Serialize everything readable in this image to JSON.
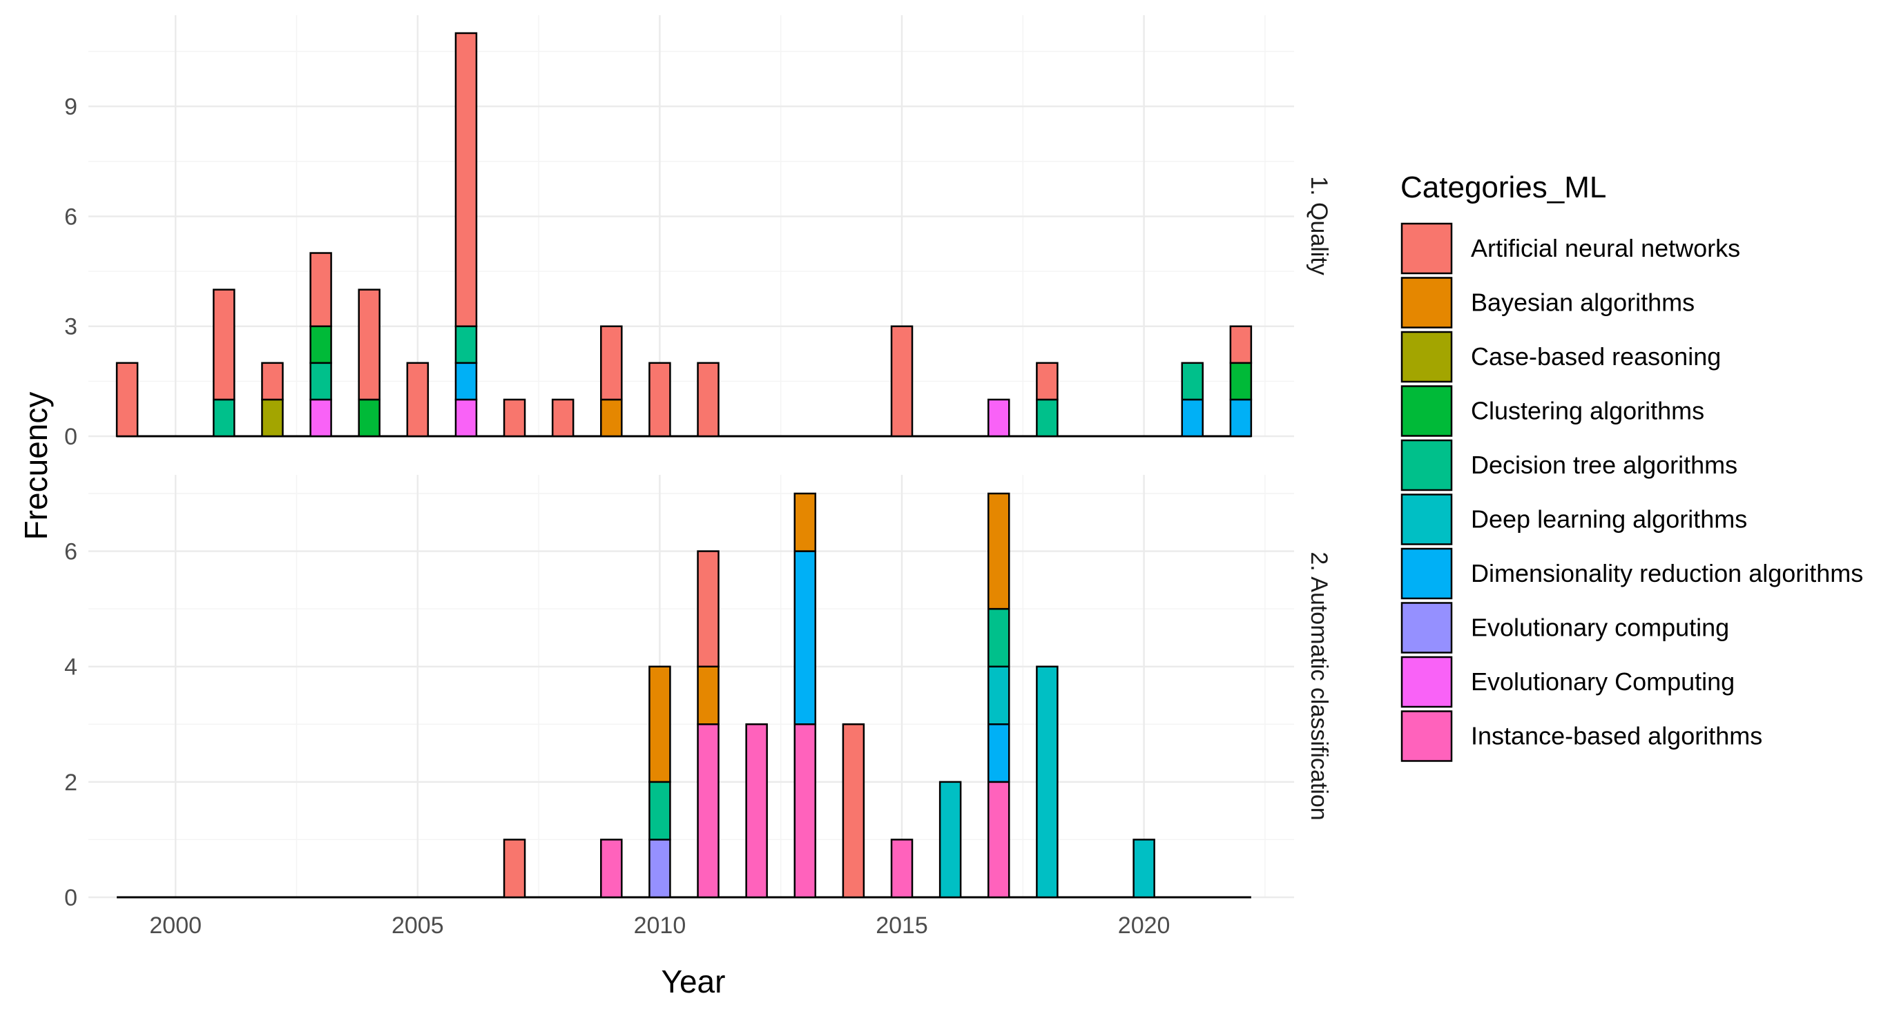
{
  "chart_data": {
    "type": "bar",
    "stacked": true,
    "xlabel": "Year",
    "ylabel": "Frecuency",
    "legend_title": "Categories_ML",
    "legend_position": "right",
    "x_ticks": [
      2000,
      2005,
      2010,
      2015,
      2020
    ],
    "categories": [
      {
        "name": "Artificial neural networks",
        "color": "#F8766D"
      },
      {
        "name": "Bayesian algorithms",
        "color": "#E58700"
      },
      {
        "name": "Case-based reasoning",
        "color": "#A3A500"
      },
      {
        "name": "Clustering algorithms",
        "color": "#00BA38"
      },
      {
        "name": "Decision tree algorithms",
        "color": "#00C08B"
      },
      {
        "name": "Deep learning algorithms",
        "color": "#00BFC4"
      },
      {
        "name": "Dimensionality reduction algorithms",
        "color": "#00B0F6"
      },
      {
        "name": "Evolutionary computing",
        "color": "#9590FF"
      },
      {
        "name": "Evolutionary Computing",
        "color": "#F962F7"
      },
      {
        "name": "Instance-based algorithms",
        "color": "#FF62BC"
      }
    ],
    "panels": [
      {
        "strip": "1. Quality",
        "ylim": [
          0,
          11
        ],
        "y_ticks": [
          0,
          3,
          6,
          9
        ],
        "bars": [
          {
            "year": 1999,
            "segments": [
              {
                "category": "Artificial neural networks",
                "value": 2
              }
            ]
          },
          {
            "year": 2001,
            "segments": [
              {
                "category": "Decision tree algorithms",
                "value": 1
              },
              {
                "category": "Artificial neural networks",
                "value": 3
              }
            ]
          },
          {
            "year": 2002,
            "segments": [
              {
                "category": "Case-based reasoning",
                "value": 1
              },
              {
                "category": "Artificial neural networks",
                "value": 1
              }
            ]
          },
          {
            "year": 2003,
            "segments": [
              {
                "category": "Evolutionary Computing",
                "value": 1
              },
              {
                "category": "Decision tree algorithms",
                "value": 1
              },
              {
                "category": "Clustering algorithms",
                "value": 1
              },
              {
                "category": "Artificial neural networks",
                "value": 2
              }
            ]
          },
          {
            "year": 2004,
            "segments": [
              {
                "category": "Clustering algorithms",
                "value": 1
              },
              {
                "category": "Artificial neural networks",
                "value": 3
              }
            ]
          },
          {
            "year": 2005,
            "segments": [
              {
                "category": "Artificial neural networks",
                "value": 2
              }
            ]
          },
          {
            "year": 2006,
            "segments": [
              {
                "category": "Evolutionary Computing",
                "value": 1
              },
              {
                "category": "Dimensionality reduction algorithms",
                "value": 1
              },
              {
                "category": "Decision tree algorithms",
                "value": 1
              },
              {
                "category": "Artificial neural networks",
                "value": 8
              }
            ]
          },
          {
            "year": 2007,
            "segments": [
              {
                "category": "Artificial neural networks",
                "value": 1
              }
            ]
          },
          {
            "year": 2008,
            "segments": [
              {
                "category": "Artificial neural networks",
                "value": 1
              }
            ]
          },
          {
            "year": 2009,
            "segments": [
              {
                "category": "Bayesian algorithms",
                "value": 1
              },
              {
                "category": "Artificial neural networks",
                "value": 2
              }
            ]
          },
          {
            "year": 2010,
            "segments": [
              {
                "category": "Artificial neural networks",
                "value": 2
              }
            ]
          },
          {
            "year": 2011,
            "segments": [
              {
                "category": "Artificial neural networks",
                "value": 2
              }
            ]
          },
          {
            "year": 2015,
            "segments": [
              {
                "category": "Artificial neural networks",
                "value": 3
              }
            ]
          },
          {
            "year": 2017,
            "segments": [
              {
                "category": "Evolutionary Computing",
                "value": 1
              }
            ]
          },
          {
            "year": 2018,
            "segments": [
              {
                "category": "Decision tree algorithms",
                "value": 1
              },
              {
                "category": "Artificial neural networks",
                "value": 1
              }
            ]
          },
          {
            "year": 2021,
            "segments": [
              {
                "category": "Dimensionality reduction algorithms",
                "value": 1
              },
              {
                "category": "Decision tree algorithms",
                "value": 1
              }
            ]
          },
          {
            "year": 2022,
            "segments": [
              {
                "category": "Dimensionality reduction algorithms",
                "value": 1
              },
              {
                "category": "Clustering algorithms",
                "value": 1
              },
              {
                "category": "Artificial neural networks",
                "value": 1
              }
            ]
          }
        ]
      },
      {
        "strip": "2. Automatic classification",
        "ylim": [
          0,
          7
        ],
        "y_ticks": [
          0,
          2,
          4,
          6
        ],
        "bars": [
          {
            "year": 2007,
            "segments": [
              {
                "category": "Artificial neural networks",
                "value": 1
              }
            ]
          },
          {
            "year": 2009,
            "segments": [
              {
                "category": "Instance-based algorithms",
                "value": 1
              }
            ]
          },
          {
            "year": 2010,
            "segments": [
              {
                "category": "Evolutionary computing",
                "value": 1
              },
              {
                "category": "Decision tree algorithms",
                "value": 1
              },
              {
                "category": "Bayesian algorithms",
                "value": 2
              }
            ]
          },
          {
            "year": 2011,
            "segments": [
              {
                "category": "Instance-based algorithms",
                "value": 3
              },
              {
                "category": "Bayesian algorithms",
                "value": 1
              },
              {
                "category": "Artificial neural networks",
                "value": 2
              }
            ]
          },
          {
            "year": 2012,
            "segments": [
              {
                "category": "Instance-based algorithms",
                "value": 3
              }
            ]
          },
          {
            "year": 2013,
            "segments": [
              {
                "category": "Instance-based algorithms",
                "value": 3
              },
              {
                "category": "Dimensionality reduction algorithms",
                "value": 3
              },
              {
                "category": "Bayesian algorithms",
                "value": 1
              }
            ]
          },
          {
            "year": 2014,
            "segments": [
              {
                "category": "Artificial neural networks",
                "value": 3
              }
            ]
          },
          {
            "year": 2015,
            "segments": [
              {
                "category": "Instance-based algorithms",
                "value": 1
              }
            ]
          },
          {
            "year": 2016,
            "segments": [
              {
                "category": "Deep learning algorithms",
                "value": 2
              }
            ]
          },
          {
            "year": 2017,
            "segments": [
              {
                "category": "Instance-based algorithms",
                "value": 2
              },
              {
                "category": "Dimensionality reduction algorithms",
                "value": 1
              },
              {
                "category": "Deep learning algorithms",
                "value": 1
              },
              {
                "category": "Decision tree algorithms",
                "value": 1
              },
              {
                "category": "Bayesian algorithms",
                "value": 2
              }
            ]
          },
          {
            "year": 2018,
            "segments": [
              {
                "category": "Deep learning algorithms",
                "value": 4
              }
            ]
          },
          {
            "year": 2020,
            "segments": [
              {
                "category": "Deep learning algorithms",
                "value": 1
              }
            ]
          }
        ]
      }
    ]
  }
}
